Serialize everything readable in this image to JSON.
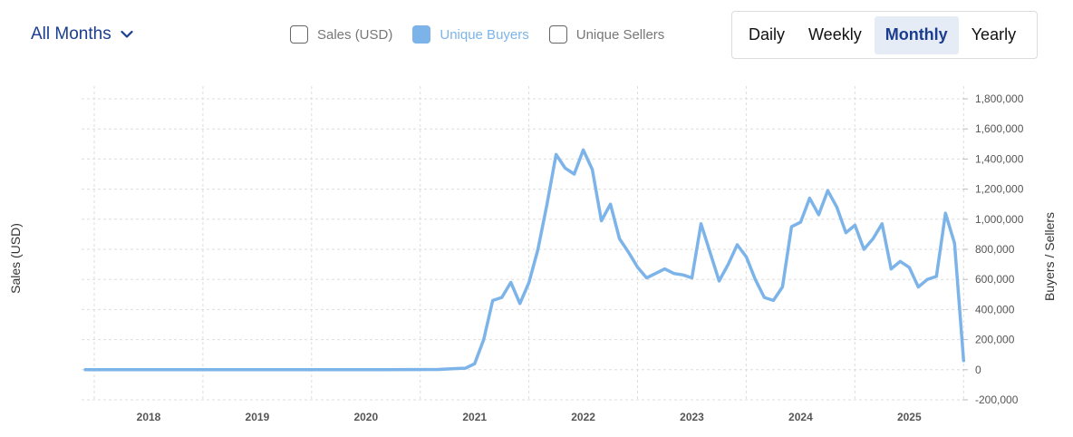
{
  "controls": {
    "range_label": "All Months",
    "legend": [
      {
        "label": "Sales (USD)",
        "checked": false
      },
      {
        "label": "Unique Buyers",
        "checked": true
      },
      {
        "label": "Unique Sellers",
        "checked": false
      }
    ],
    "periods": [
      "Daily",
      "Weekly",
      "Monthly",
      "Yearly"
    ],
    "active_period": "Monthly"
  },
  "colors": {
    "series": "#7cb4e9",
    "accent": "#1b3d8f"
  },
  "chart_data": {
    "type": "line",
    "ylabel_left": "Sales (USD)",
    "ylabel_right": "Buyers / Sellers",
    "x_ticks": [
      "2018",
      "2019",
      "2020",
      "2021",
      "2022",
      "2023",
      "2024",
      "2025"
    ],
    "y_ticks": [
      "1,800,000",
      "1,600,000",
      "1,400,000",
      "1,200,000",
      "1,000,000",
      "800,000",
      "600,000",
      "400,000",
      "200,000",
      "0",
      "-200,000"
    ],
    "ylim": [
      -200000,
      1800000
    ],
    "grid": true,
    "series": [
      {
        "name": "Unique Buyers",
        "x": [
          "2017-06",
          "2017-09",
          "2017-12",
          "2018-03",
          "2018-06",
          "2018-09",
          "2018-12",
          "2019-03",
          "2019-06",
          "2019-09",
          "2019-12",
          "2020-03",
          "2020-06",
          "2020-09",
          "2020-11",
          "2020-12",
          "2021-01",
          "2021-02",
          "2021-03",
          "2021-04",
          "2021-05",
          "2021-06",
          "2021-07",
          "2021-08",
          "2021-09",
          "2021-10",
          "2021-11",
          "2021-12",
          "2022-01",
          "2022-02",
          "2022-03",
          "2022-04",
          "2022-05",
          "2022-06",
          "2022-07",
          "2022-08",
          "2022-09",
          "2022-10",
          "2022-11",
          "2022-12",
          "2023-01",
          "2023-02",
          "2023-03",
          "2023-04",
          "2023-05",
          "2023-06",
          "2023-07",
          "2023-08",
          "2023-09",
          "2023-10",
          "2023-11",
          "2023-12",
          "2024-01",
          "2024-02",
          "2024-03",
          "2024-04",
          "2024-05",
          "2024-06",
          "2024-07",
          "2024-08",
          "2024-09",
          "2024-10",
          "2024-11",
          "2024-12",
          "2025-01",
          "2025-02",
          "2025-03",
          "2025-04",
          "2025-05",
          "2025-06",
          "2025-07"
        ],
        "values": [
          0,
          0,
          0,
          0,
          0,
          0,
          0,
          0,
          0,
          0,
          0,
          0,
          1000,
          2000,
          8000,
          10000,
          40000,
          200000,
          460000,
          480000,
          580000,
          440000,
          580000,
          800000,
          1100000,
          1430000,
          1340000,
          1300000,
          1460000,
          1330000,
          990000,
          1100000,
          870000,
          780000,
          680000,
          610000,
          640000,
          670000,
          640000,
          630000,
          610000,
          970000,
          780000,
          590000,
          700000,
          830000,
          750000,
          600000,
          480000,
          460000,
          550000,
          950000,
          980000,
          1140000,
          1030000,
          1190000,
          1080000,
          910000,
          960000,
          800000,
          870000,
          970000,
          670000,
          720000,
          680000,
          550000,
          600000,
          620000,
          1040000,
          840000,
          60000
        ]
      }
    ]
  }
}
